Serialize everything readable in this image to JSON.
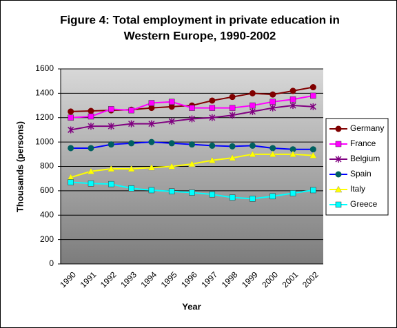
{
  "chart_data": {
    "type": "line",
    "title": [
      "Figure 4: Total employment in private education in",
      "Western Europe, 1990-2002"
    ],
    "x_label": "Year",
    "y_label": "Thousands (persons)",
    "categories": [
      "1990",
      "1991",
      "1992",
      "1993",
      "1994",
      "1995",
      "1996",
      "1997",
      "1998",
      "1999",
      "2000",
      "2001",
      "2002"
    ],
    "ylim": [
      0,
      1600
    ],
    "yticks": [
      0,
      200,
      400,
      600,
      800,
      1000,
      1200,
      1400,
      1600
    ],
    "grid": true,
    "legend": "right",
    "series": [
      {
        "name": "Germany",
        "color": "#800000",
        "marker_color": "#800000",
        "marker": "circle",
        "values": [
          1250,
          1255,
          1260,
          1265,
          1280,
          1290,
          1300,
          1340,
          1370,
          1400,
          1390,
          1420,
          1450
        ]
      },
      {
        "name": "France",
        "color": "#ff00ff",
        "marker_color": "#ff00ff",
        "marker": "square",
        "values": [
          1200,
          1210,
          1270,
          1260,
          1320,
          1330,
          1280,
          1280,
          1280,
          1300,
          1330,
          1350,
          1380
        ]
      },
      {
        "name": "Belgium",
        "color": "#800080",
        "marker_color": "#800080",
        "marker": "star",
        "values": [
          1100,
          1130,
          1130,
          1150,
          1150,
          1170,
          1190,
          1200,
          1220,
          1250,
          1280,
          1300,
          1290
        ]
      },
      {
        "name": "Spain",
        "color": "#0000ff",
        "marker_color": "#006060",
        "marker": "circle",
        "values": [
          950,
          950,
          980,
          990,
          1000,
          990,
          980,
          970,
          965,
          970,
          950,
          940,
          940
        ]
      },
      {
        "name": "Italy",
        "color": "#ffff00",
        "marker_color": "#ffff00",
        "marker": "triangle",
        "values": [
          710,
          760,
          780,
          780,
          790,
          800,
          820,
          850,
          870,
          900,
          900,
          900,
          890
        ]
      },
      {
        "name": "Greece",
        "color": "#00ffff",
        "marker_color": "#00ffff",
        "marker": "square",
        "values": [
          670,
          660,
          655,
          620,
          605,
          595,
          585,
          570,
          545,
          535,
          555,
          580,
          605
        ]
      }
    ]
  }
}
